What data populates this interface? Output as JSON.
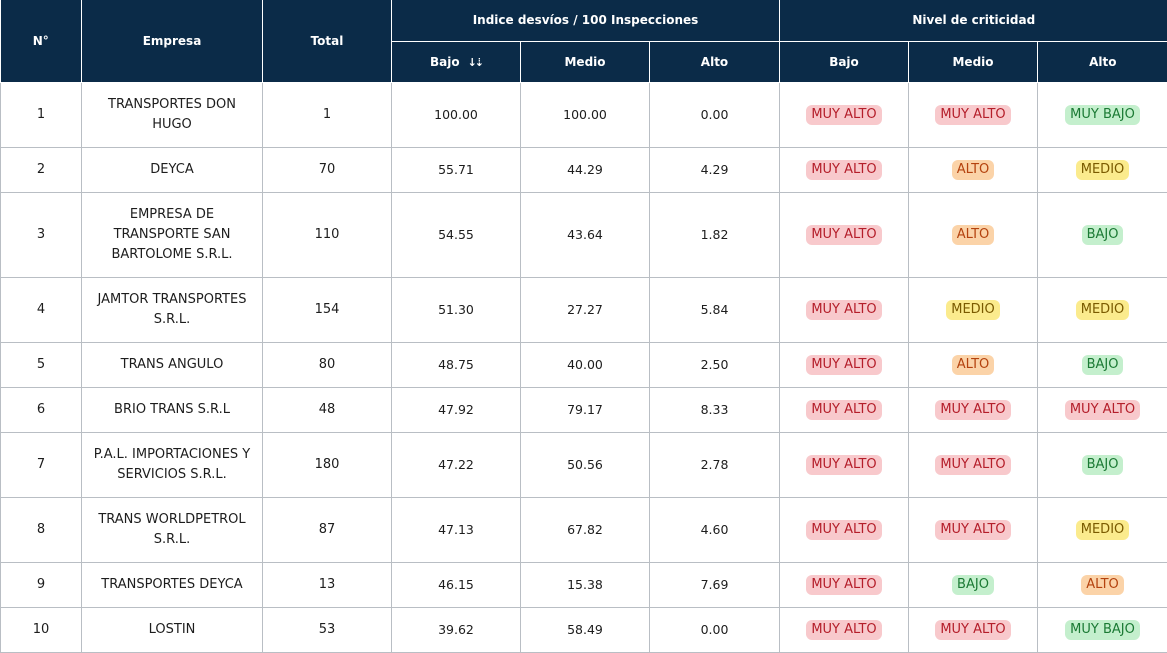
{
  "headers": {
    "n": "N°",
    "empresa": "Empresa",
    "total": "Total",
    "indice_group": "Indice desvíos / 100 Inspecciones",
    "nivel_group": "Nivel de criticidad",
    "bajo": "Bajo",
    "medio": "Medio",
    "alto": "Alto",
    "sort_glyph": "↓⇣"
  },
  "level_colors": {
    "MUY ALTO": "#f8c9cc",
    "ALTO": "#fbd3a8",
    "MEDIO": "#fbeb8d",
    "BAJO": "#c4efcd",
    "MUY BAJO": "#c4efcd"
  },
  "header_bg": "#0b2b48",
  "rows": [
    {
      "n": "1",
      "empresa": "TRANSPORTES DON HUGO",
      "total": "1",
      "bajo": "100.00",
      "medio": "100.00",
      "alto": "0.00",
      "nivel_bajo": "MUY ALTO",
      "nivel_medio": "MUY ALTO",
      "nivel_alto": "MUY BAJO"
    },
    {
      "n": "2",
      "empresa": "DEYCA",
      "total": "70",
      "bajo": "55.71",
      "medio": "44.29",
      "alto": "4.29",
      "nivel_bajo": "MUY ALTO",
      "nivel_medio": "ALTO",
      "nivel_alto": "MEDIO"
    },
    {
      "n": "3",
      "empresa": "EMPRESA DE TRANSPORTE SAN BARTOLOME S.R.L.",
      "total": "110",
      "bajo": "54.55",
      "medio": "43.64",
      "alto": "1.82",
      "nivel_bajo": "MUY ALTO",
      "nivel_medio": "ALTO",
      "nivel_alto": "BAJO"
    },
    {
      "n": "4",
      "empresa": "JAMTOR TRANSPORTES S.R.L.",
      "total": "154",
      "bajo": "51.30",
      "medio": "27.27",
      "alto": "5.84",
      "nivel_bajo": "MUY ALTO",
      "nivel_medio": "MEDIO",
      "nivel_alto": "MEDIO"
    },
    {
      "n": "5",
      "empresa": "TRANS ANGULO",
      "total": "80",
      "bajo": "48.75",
      "medio": "40.00",
      "alto": "2.50",
      "nivel_bajo": "MUY ALTO",
      "nivel_medio": "ALTO",
      "nivel_alto": "BAJO"
    },
    {
      "n": "6",
      "empresa": "BRIO TRANS S.R.L",
      "total": "48",
      "bajo": "47.92",
      "medio": "79.17",
      "alto": "8.33",
      "nivel_bajo": "MUY ALTO",
      "nivel_medio": "MUY ALTO",
      "nivel_alto": "MUY ALTO"
    },
    {
      "n": "7",
      "empresa": "P.A.L. IMPORTACIONES Y SERVICIOS S.R.L.",
      "total": "180",
      "bajo": "47.22",
      "medio": "50.56",
      "alto": "2.78",
      "nivel_bajo": "MUY ALTO",
      "nivel_medio": "MUY ALTO",
      "nivel_alto": "BAJO"
    },
    {
      "n": "8",
      "empresa": "TRANS WORLDPETROL S.R.L.",
      "total": "87",
      "bajo": "47.13",
      "medio": "67.82",
      "alto": "4.60",
      "nivel_bajo": "MUY ALTO",
      "nivel_medio": "MUY ALTO",
      "nivel_alto": "MEDIO"
    },
    {
      "n": "9",
      "empresa": "TRANSPORTES DEYCA",
      "total": "13",
      "bajo": "46.15",
      "medio": "15.38",
      "alto": "7.69",
      "nivel_bajo": "MUY ALTO",
      "nivel_medio": "BAJO",
      "nivel_alto": "ALTO"
    },
    {
      "n": "10",
      "empresa": "LOSTIN",
      "total": "53",
      "bajo": "39.62",
      "medio": "58.49",
      "alto": "0.00",
      "nivel_bajo": "MUY ALTO",
      "nivel_medio": "MUY ALTO",
      "nivel_alto": "MUY BAJO"
    }
  ]
}
